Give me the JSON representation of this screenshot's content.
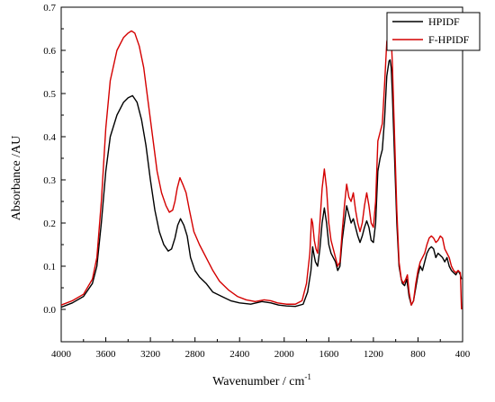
{
  "chart_data": {
    "type": "line",
    "xlabel": "Wavenumber / cm",
    "xlabel_sup": "-1",
    "ylabel": "Absorbance /AU",
    "xlim": [
      4000,
      400
    ],
    "ylim": [
      -0.075,
      0.7
    ],
    "x_reversed": true,
    "x_ticks": [
      4000,
      3600,
      3200,
      2800,
      2400,
      2000,
      1600,
      1200,
      800,
      400
    ],
    "x_tick_labels": [
      "4000",
      "3600",
      "3200",
      "2800",
      "2400",
      "2000",
      "1600",
      "1200",
      "800",
      "400"
    ],
    "y_ticks": [
      0.0,
      0.1,
      0.2,
      0.3,
      0.4,
      0.5,
      0.6,
      0.7
    ],
    "y_tick_labels": [
      "0.0",
      "0.1",
      "0.2",
      "0.3",
      "0.4",
      "0.5",
      "0.6",
      "0.7"
    ],
    "grid": false,
    "legend_position": "top-right",
    "series": [
      {
        "name": "HPIDF",
        "color": "#000000",
        "points": [
          [
            4000,
            0.005
          ],
          [
            3900,
            0.015
          ],
          [
            3800,
            0.03
          ],
          [
            3720,
            0.06
          ],
          [
            3680,
            0.1
          ],
          [
            3640,
            0.2
          ],
          [
            3600,
            0.32
          ],
          [
            3560,
            0.4
          ],
          [
            3500,
            0.45
          ],
          [
            3440,
            0.48
          ],
          [
            3400,
            0.49
          ],
          [
            3360,
            0.495
          ],
          [
            3320,
            0.48
          ],
          [
            3280,
            0.44
          ],
          [
            3240,
            0.38
          ],
          [
            3200,
            0.3
          ],
          [
            3160,
            0.23
          ],
          [
            3120,
            0.18
          ],
          [
            3080,
            0.15
          ],
          [
            3040,
            0.135
          ],
          [
            3010,
            0.14
          ],
          [
            2980,
            0.165
          ],
          [
            2955,
            0.195
          ],
          [
            2930,
            0.21
          ],
          [
            2900,
            0.195
          ],
          [
            2870,
            0.17
          ],
          [
            2840,
            0.12
          ],
          [
            2800,
            0.09
          ],
          [
            2760,
            0.075
          ],
          [
            2700,
            0.06
          ],
          [
            2640,
            0.04
          ],
          [
            2560,
            0.03
          ],
          [
            2480,
            0.02
          ],
          [
            2400,
            0.015
          ],
          [
            2300,
            0.012
          ],
          [
            2200,
            0.018
          ],
          [
            2120,
            0.015
          ],
          [
            2050,
            0.01
          ],
          [
            1980,
            0.008
          ],
          [
            1900,
            0.007
          ],
          [
            1830,
            0.012
          ],
          [
            1790,
            0.04
          ],
          [
            1760,
            0.09
          ],
          [
            1745,
            0.145
          ],
          [
            1735,
            0.13
          ],
          [
            1720,
            0.11
          ],
          [
            1700,
            0.1
          ],
          [
            1680,
            0.14
          ],
          [
            1660,
            0.2
          ],
          [
            1640,
            0.235
          ],
          [
            1620,
            0.2
          ],
          [
            1600,
            0.15
          ],
          [
            1580,
            0.13
          ],
          [
            1560,
            0.12
          ],
          [
            1540,
            0.11
          ],
          [
            1520,
            0.09
          ],
          [
            1500,
            0.1
          ],
          [
            1480,
            0.16
          ],
          [
            1460,
            0.2
          ],
          [
            1440,
            0.24
          ],
          [
            1420,
            0.22
          ],
          [
            1400,
            0.2
          ],
          [
            1380,
            0.21
          ],
          [
            1360,
            0.19
          ],
          [
            1340,
            0.17
          ],
          [
            1320,
            0.155
          ],
          [
            1300,
            0.17
          ],
          [
            1280,
            0.19
          ],
          [
            1260,
            0.205
          ],
          [
            1240,
            0.19
          ],
          [
            1220,
            0.16
          ],
          [
            1200,
            0.155
          ],
          [
            1180,
            0.2
          ],
          [
            1160,
            0.32
          ],
          [
            1140,
            0.35
          ],
          [
            1120,
            0.37
          ],
          [
            1100,
            0.44
          ],
          [
            1080,
            0.54
          ],
          [
            1060,
            0.575
          ],
          [
            1050,
            0.578
          ],
          [
            1040,
            0.56
          ],
          [
            1030,
            0.5
          ],
          [
            1010,
            0.35
          ],
          [
            990,
            0.2
          ],
          [
            970,
            0.1
          ],
          [
            950,
            0.07
          ],
          [
            940,
            0.06
          ],
          [
            920,
            0.055
          ],
          [
            900,
            0.07
          ],
          [
            880,
            0.03
          ],
          [
            860,
            0.01
          ],
          [
            840,
            0.02
          ],
          [
            820,
            0.05
          ],
          [
            800,
            0.08
          ],
          [
            780,
            0.1
          ],
          [
            760,
            0.09
          ],
          [
            740,
            0.11
          ],
          [
            720,
            0.13
          ],
          [
            700,
            0.14
          ],
          [
            680,
            0.145
          ],
          [
            660,
            0.14
          ],
          [
            640,
            0.12
          ],
          [
            620,
            0.13
          ],
          [
            600,
            0.125
          ],
          [
            580,
            0.12
          ],
          [
            560,
            0.11
          ],
          [
            540,
            0.12
          ],
          [
            520,
            0.1
          ],
          [
            500,
            0.09
          ],
          [
            480,
            0.085
          ],
          [
            460,
            0.08
          ],
          [
            440,
            0.09
          ],
          [
            420,
            0.08
          ],
          [
            410,
            0.07
          ]
        ]
      },
      {
        "name": "F-HPIDF",
        "color": "#d40000",
        "points": [
          [
            4000,
            0.01
          ],
          [
            3900,
            0.02
          ],
          [
            3800,
            0.035
          ],
          [
            3720,
            0.07
          ],
          [
            3680,
            0.12
          ],
          [
            3640,
            0.25
          ],
          [
            3600,
            0.42
          ],
          [
            3560,
            0.53
          ],
          [
            3500,
            0.6
          ],
          [
            3440,
            0.63
          ],
          [
            3400,
            0.64
          ],
          [
            3370,
            0.645
          ],
          [
            3340,
            0.64
          ],
          [
            3300,
            0.61
          ],
          [
            3260,
            0.56
          ],
          [
            3220,
            0.48
          ],
          [
            3180,
            0.4
          ],
          [
            3140,
            0.32
          ],
          [
            3100,
            0.27
          ],
          [
            3060,
            0.24
          ],
          [
            3030,
            0.225
          ],
          [
            3000,
            0.23
          ],
          [
            2980,
            0.25
          ],
          [
            2960,
            0.28
          ],
          [
            2935,
            0.305
          ],
          [
            2910,
            0.29
          ],
          [
            2880,
            0.27
          ],
          [
            2850,
            0.23
          ],
          [
            2810,
            0.18
          ],
          [
            2760,
            0.15
          ],
          [
            2700,
            0.12
          ],
          [
            2640,
            0.09
          ],
          [
            2580,
            0.065
          ],
          [
            2500,
            0.045
          ],
          [
            2420,
            0.03
          ],
          [
            2340,
            0.022
          ],
          [
            2260,
            0.018
          ],
          [
            2180,
            0.022
          ],
          [
            2120,
            0.02
          ],
          [
            2060,
            0.015
          ],
          [
            1980,
            0.012
          ],
          [
            1900,
            0.012
          ],
          [
            1840,
            0.02
          ],
          [
            1800,
            0.06
          ],
          [
            1770,
            0.13
          ],
          [
            1755,
            0.21
          ],
          [
            1745,
            0.2
          ],
          [
            1730,
            0.16
          ],
          [
            1715,
            0.14
          ],
          [
            1700,
            0.13
          ],
          [
            1680,
            0.2
          ],
          [
            1660,
            0.28
          ],
          [
            1640,
            0.325
          ],
          [
            1620,
            0.28
          ],
          [
            1600,
            0.2
          ],
          [
            1580,
            0.16
          ],
          [
            1560,
            0.14
          ],
          [
            1540,
            0.12
          ],
          [
            1520,
            0.1
          ],
          [
            1500,
            0.11
          ],
          [
            1480,
            0.18
          ],
          [
            1460,
            0.24
          ],
          [
            1440,
            0.29
          ],
          [
            1420,
            0.26
          ],
          [
            1400,
            0.25
          ],
          [
            1380,
            0.27
          ],
          [
            1360,
            0.23
          ],
          [
            1340,
            0.2
          ],
          [
            1320,
            0.18
          ],
          [
            1300,
            0.2
          ],
          [
            1280,
            0.24
          ],
          [
            1260,
            0.27
          ],
          [
            1240,
            0.24
          ],
          [
            1220,
            0.2
          ],
          [
            1200,
            0.19
          ],
          [
            1180,
            0.25
          ],
          [
            1160,
            0.39
          ],
          [
            1140,
            0.41
          ],
          [
            1120,
            0.43
          ],
          [
            1100,
            0.52
          ],
          [
            1080,
            0.62
          ],
          [
            1060,
            0.645
          ],
          [
            1050,
            0.648
          ],
          [
            1040,
            0.63
          ],
          [
            1030,
            0.57
          ],
          [
            1010,
            0.4
          ],
          [
            990,
            0.23
          ],
          [
            970,
            0.11
          ],
          [
            950,
            0.07
          ],
          [
            930,
            0.06
          ],
          [
            910,
            0.07
          ],
          [
            895,
            0.08
          ],
          [
            880,
            0.04
          ],
          [
            860,
            0.01
          ],
          [
            840,
            0.02
          ],
          [
            820,
            0.06
          ],
          [
            800,
            0.09
          ],
          [
            780,
            0.11
          ],
          [
            760,
            0.12
          ],
          [
            740,
            0.13
          ],
          [
            720,
            0.15
          ],
          [
            700,
            0.165
          ],
          [
            680,
            0.17
          ],
          [
            660,
            0.165
          ],
          [
            640,
            0.155
          ],
          [
            620,
            0.16
          ],
          [
            600,
            0.17
          ],
          [
            580,
            0.165
          ],
          [
            560,
            0.14
          ],
          [
            540,
            0.13
          ],
          [
            520,
            0.12
          ],
          [
            500,
            0.1
          ],
          [
            480,
            0.09
          ],
          [
            460,
            0.085
          ],
          [
            440,
            0.09
          ],
          [
            420,
            0.085
          ],
          [
            410,
            0.0
          ]
        ]
      }
    ]
  }
}
